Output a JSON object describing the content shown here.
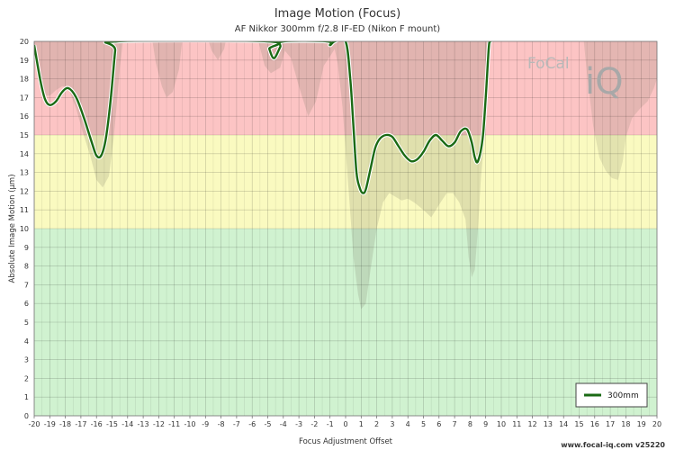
{
  "chart_data": {
    "type": "line",
    "title": "Image Motion (Focus)",
    "subtitle": "AF Nikkor 300mm f/2.8 IF-ED (Nikon F mount)",
    "xlabel": "Focus Adjustment Offset",
    "ylabel": "Absolute Image Motion (µm)",
    "xlim": [
      -20,
      20
    ],
    "ylim": [
      0,
      20
    ],
    "x_ticks": [
      -20,
      -19,
      -18,
      -17,
      -16,
      -15,
      -14,
      -13,
      -12,
      -11,
      -10,
      -9,
      -8,
      -7,
      -6,
      -5,
      -4,
      -3,
      -2,
      -1,
      0,
      1,
      2,
      3,
      4,
      5,
      6,
      7,
      8,
      9,
      10,
      11,
      12,
      13,
      14,
      15,
      16,
      17,
      18,
      19,
      20
    ],
    "y_ticks": [
      0,
      1,
      2,
      3,
      4,
      5,
      6,
      7,
      8,
      9,
      10,
      11,
      12,
      13,
      14,
      15,
      16,
      17,
      18,
      19,
      20
    ],
    "grid": true,
    "bands": [
      {
        "from": 0,
        "to": 10,
        "color": "#d0f2d0"
      },
      {
        "from": 10,
        "to": 15,
        "color": "#fafac0"
      },
      {
        "from": 15,
        "to": 20,
        "color": "#fcc4c4"
      }
    ],
    "legend": {
      "position": "bottom-right",
      "entries": [
        "300mm"
      ]
    },
    "series": [
      {
        "name": "300mm",
        "color": "#1a6a14",
        "points": [
          [
            -20,
            19.8
          ],
          [
            -19.6,
            17.9
          ],
          [
            -19.3,
            16.9
          ],
          [
            -19,
            16.6
          ],
          [
            -18.6,
            16.8
          ],
          [
            -18.2,
            17.3
          ],
          [
            -17.8,
            17.5
          ],
          [
            -17.3,
            17.0
          ],
          [
            -16.8,
            15.9
          ],
          [
            -16.3,
            14.6
          ],
          [
            -16,
            13.9
          ],
          [
            -15.7,
            13.9
          ],
          [
            -15.4,
            14.8
          ],
          [
            -15.1,
            16.8
          ],
          [
            -14.8,
            19.5
          ],
          [
            -14.7,
            20
          ],
          [
            -5,
            20
          ],
          [
            -4.9,
            19.6
          ],
          [
            -4.6,
            19.1
          ],
          [
            -4.2,
            19.7
          ],
          [
            -4.0,
            20
          ],
          [
            -1.2,
            20
          ],
          [
            -1,
            19.8
          ],
          [
            -0.7,
            20
          ],
          [
            0,
            20
          ],
          [
            0.3,
            18.0
          ],
          [
            0.5,
            15.5
          ],
          [
            0.7,
            13.0
          ],
          [
            0.9,
            12.2
          ],
          [
            1.1,
            11.9
          ],
          [
            1.3,
            12.1
          ],
          [
            1.6,
            13.2
          ],
          [
            1.9,
            14.3
          ],
          [
            2.2,
            14.8
          ],
          [
            2.6,
            15.0
          ],
          [
            3,
            14.9
          ],
          [
            3.4,
            14.4
          ],
          [
            3.8,
            13.9
          ],
          [
            4.2,
            13.6
          ],
          [
            4.6,
            13.7
          ],
          [
            5,
            14.1
          ],
          [
            5.4,
            14.7
          ],
          [
            5.8,
            15.0
          ],
          [
            6.2,
            14.7
          ],
          [
            6.6,
            14.4
          ],
          [
            7.0,
            14.6
          ],
          [
            7.4,
            15.2
          ],
          [
            7.8,
            15.3
          ],
          [
            8.1,
            14.6
          ],
          [
            8.3,
            13.8
          ],
          [
            8.5,
            13.6
          ],
          [
            8.8,
            14.8
          ],
          [
            9.0,
            17.0
          ],
          [
            9.2,
            19.7
          ],
          [
            9.3,
            20
          ]
        ]
      }
    ],
    "ranges": [
      {
        "color": "rgba(120,120,100,0.20)",
        "upper": [
          [
            -20,
            20
          ],
          [
            -16,
            20
          ],
          [
            -15.7,
            20
          ],
          [
            -14.7,
            20
          ],
          [
            8.5,
            20
          ],
          [
            9.3,
            20
          ]
        ],
        "lower": [
          [
            -20,
            19.0
          ],
          [
            -19.4,
            17.1
          ],
          [
            -19,
            17.1
          ],
          [
            -18.6,
            17.4
          ],
          [
            -18.2,
            17.6
          ],
          [
            -17.8,
            17.5
          ],
          [
            -17.3,
            16.4
          ],
          [
            -16.9,
            15.2
          ],
          [
            -16.4,
            13.9
          ],
          [
            -16.0,
            12.6
          ],
          [
            -15.6,
            12.2
          ],
          [
            -15.2,
            12.8
          ],
          [
            -14.9,
            14.8
          ],
          [
            -14.7,
            16.6
          ],
          [
            -14.5,
            18.6
          ],
          [
            -14.3,
            20
          ],
          [
            -12.4,
            20
          ],
          [
            -12.2,
            18.9
          ],
          [
            -11.8,
            17.6
          ],
          [
            -11.5,
            17.0
          ],
          [
            -11.1,
            17.3
          ],
          [
            -10.7,
            18.5
          ],
          [
            -10.5,
            20
          ],
          [
            -8.8,
            20
          ],
          [
            -8.6,
            19.5
          ],
          [
            -8.2,
            19.0
          ],
          [
            -7.8,
            19.6
          ],
          [
            -7.7,
            20
          ],
          [
            -5.6,
            20
          ],
          [
            -5.2,
            18.7
          ],
          [
            -4.8,
            18.3
          ],
          [
            -4.2,
            18.6
          ],
          [
            -3.9,
            19.5
          ],
          [
            -3.5,
            19.1
          ],
          [
            -3.0,
            17.6
          ],
          [
            -2.4,
            16.0
          ],
          [
            -1.9,
            16.8
          ],
          [
            -1.4,
            18.7
          ],
          [
            -1.0,
            19.2
          ],
          [
            -0.7,
            19.6
          ],
          [
            -0.5,
            18.8
          ],
          [
            -0.2,
            16.5
          ],
          [
            0.2,
            12.0
          ],
          [
            0.5,
            8.5
          ],
          [
            0.8,
            6.5
          ],
          [
            1.0,
            5.7
          ],
          [
            1.3,
            6.0
          ],
          [
            1.6,
            7.8
          ],
          [
            2.0,
            10.0
          ],
          [
            2.4,
            11.4
          ],
          [
            2.8,
            11.9
          ],
          [
            3.2,
            11.7
          ],
          [
            3.6,
            11.5
          ],
          [
            4.0,
            11.6
          ],
          [
            4.4,
            11.4
          ],
          [
            5.0,
            11.0
          ],
          [
            5.5,
            10.6
          ],
          [
            6.1,
            11.4
          ],
          [
            6.5,
            11.9
          ],
          [
            6.9,
            11.9
          ],
          [
            7.3,
            11.4
          ],
          [
            7.7,
            10.5
          ],
          [
            7.9,
            8.5
          ],
          [
            8.1,
            7.4
          ],
          [
            8.3,
            7.8
          ],
          [
            8.5,
            10.0
          ],
          [
            8.7,
            12.8
          ],
          [
            9.0,
            15.5
          ],
          [
            9.2,
            17.8
          ],
          [
            9.3,
            20
          ]
        ]
      },
      {
        "color": "rgba(120,120,100,0.18)",
        "upper": [
          [
            15.3,
            20
          ],
          [
            20,
            20
          ]
        ],
        "lower": [
          [
            15.3,
            20
          ],
          [
            15.5,
            18.3
          ],
          [
            15.9,
            15.5
          ],
          [
            16.3,
            13.8
          ],
          [
            16.7,
            13.1
          ],
          [
            17.1,
            12.7
          ],
          [
            17.5,
            12.6
          ],
          [
            17.8,
            13.6
          ],
          [
            18.0,
            14.9
          ],
          [
            18.4,
            15.9
          ],
          [
            18.9,
            16.4
          ],
          [
            19.4,
            16.8
          ],
          [
            19.8,
            17.5
          ],
          [
            20,
            18.0
          ]
        ]
      }
    ]
  },
  "watermark": {
    "brand_text": "FoCal",
    "brand_suffix": "iQ"
  },
  "footer": {
    "credit": "www.focal-iq.com  v25220"
  }
}
